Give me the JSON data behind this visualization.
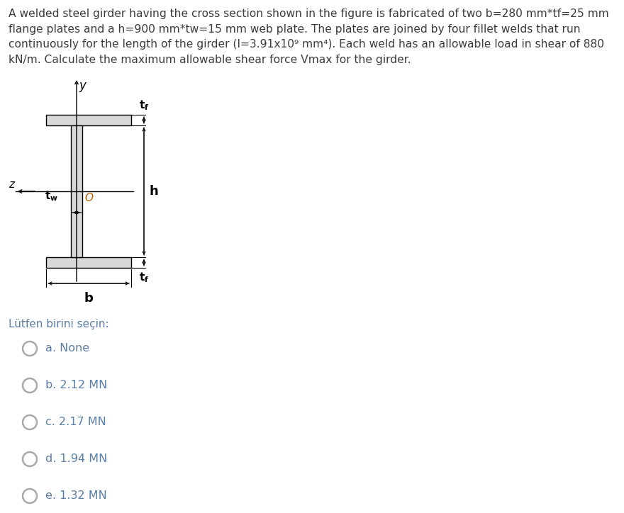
{
  "title_text": "A welded steel girder having the cross section shown in the figure is fabricated of two b=280 mm*tf=25 mm\nflange plates and a h=900 mm*tw=15 mm web plate. The plates are joined by four fillet welds that run\ncontinuously for the length of the girder (I=3.91x10⁹ mm⁴). Each weld has an allowable load in shear of 880\nkN/m. Calculate the maximum allowable shear force Vmax for the girder.",
  "options_label": "Lütfen birini seçin:",
  "options": [
    "a. None",
    "b. 2.12 MN",
    "c. 2.17 MN",
    "d. 1.94 MN",
    "e. 1.32 MN"
  ],
  "bg_color": "#ffffff",
  "text_color": "#3c3c3c",
  "label_color": "#5a7fa8",
  "girder_color": "#000000",
  "girder_face": "#d8d8d8",
  "font_size_title": 11.2,
  "font_size_options": 11.5,
  "font_size_label": 11.0,
  "circle_color": "#aaaaaa",
  "option_text_color": "#5a7fa8"
}
